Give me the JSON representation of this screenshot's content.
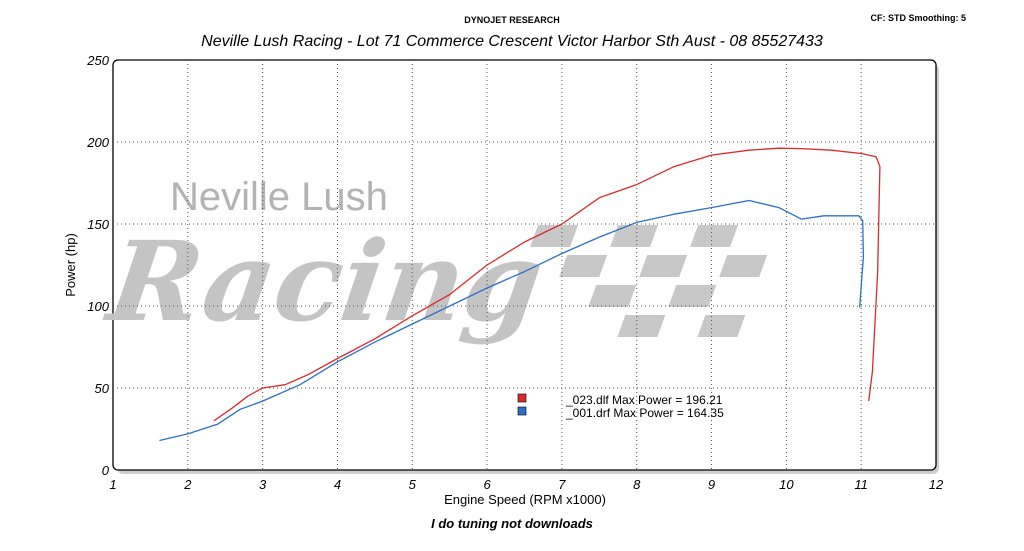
{
  "header": {
    "brand": "DYNOJET RESEARCH",
    "settings": "CF: STD  Smoothing: 5",
    "subtitle": "Neville Lush Racing  - Lot 71 Commerce Crescent  Victor Harbor Sth Aust  - 08 85527433"
  },
  "footer": {
    "caption": "I do tuning not downloads"
  },
  "watermark": {
    "line1": "Neville Lush",
    "line2": "Racing"
  },
  "colors": {
    "red_run": "#d92b2b",
    "blue_run": "#2c6fc9",
    "grid": "#555555",
    "watermark": "#c0c0c0"
  },
  "chart_data": {
    "type": "line",
    "title": "",
    "xlabel": "Engine Speed (RPM x1000)",
    "ylabel": "Power (hp)",
    "xlim": [
      1,
      12
    ],
    "ylim": [
      0,
      250
    ],
    "xticks": [
      1,
      2,
      3,
      4,
      5,
      6,
      7,
      8,
      9,
      10,
      11,
      12
    ],
    "yticks": [
      0,
      50,
      100,
      150,
      200,
      250
    ],
    "grid": true,
    "legend_position": "lower-center",
    "series": [
      {
        "name": "_023.dlf Max Power = 196.21",
        "color": "#d92b2b",
        "x": [
          2.35,
          2.6,
          2.8,
          3.0,
          3.3,
          3.6,
          4.0,
          4.5,
          5.0,
          5.5,
          6.0,
          6.5,
          7.0,
          7.5,
          8.0,
          8.5,
          9.0,
          9.5,
          9.9,
          10.2,
          10.6,
          11.0,
          11.2,
          11.25,
          11.22,
          11.15,
          11.1
        ],
        "y": [
          30,
          38,
          45,
          50,
          52,
          58,
          68,
          80,
          94,
          107,
          125,
          139,
          150,
          166,
          174,
          185,
          192,
          195,
          196.2,
          196,
          195,
          193,
          191,
          185,
          120,
          60,
          42
        ]
      },
      {
        "name": "_001.drf Max Power = 164.35",
        "color": "#2c6fc9",
        "x": [
          1.62,
          2.0,
          2.4,
          2.7,
          3.0,
          3.5,
          4.0,
          4.5,
          5.0,
          5.5,
          6.0,
          6.5,
          7.0,
          7.5,
          8.0,
          8.5,
          9.0,
          9.5,
          9.9,
          10.2,
          10.5,
          10.8,
          10.97,
          11.02,
          11.03,
          11.0,
          10.98
        ],
        "y": [
          18,
          22,
          28,
          37,
          42,
          52,
          66,
          78,
          89,
          100,
          111,
          121,
          132,
          142,
          151,
          156,
          160,
          164.35,
          160,
          153,
          155,
          155,
          155,
          152,
          130,
          112,
          99
        ]
      }
    ]
  }
}
